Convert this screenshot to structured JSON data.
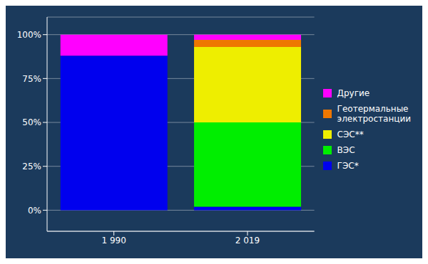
{
  "chart_data": {
    "type": "bar",
    "stacked": true,
    "categories": [
      "1 990",
      "2 019"
    ],
    "series": [
      {
        "name": "ГЭС*",
        "color": "#0000ee",
        "values": [
          88,
          2
        ]
      },
      {
        "name": "ВЭС",
        "color": "#00ee00",
        "values": [
          0,
          48
        ]
      },
      {
        "name": "СЭС**",
        "color": "#eeee00",
        "values": [
          0,
          43
        ]
      },
      {
        "name": "Геотермальные\nэлектростанции",
        "color": "#ee7700",
        "values": [
          0,
          4
        ]
      },
      {
        "name": "Другие",
        "color": "#ff00ff",
        "values": [
          12,
          3
        ]
      }
    ],
    "ylim": [
      -12,
      110
    ],
    "yticks": [
      {
        "value": 0,
        "label": "0%"
      },
      {
        "value": 25,
        "label": "25%"
      },
      {
        "value": 50,
        "label": "50%"
      },
      {
        "value": 75,
        "label": "75%"
      },
      {
        "value": 100,
        "label": "100%"
      }
    ],
    "grid": true,
    "legend": "right"
  }
}
